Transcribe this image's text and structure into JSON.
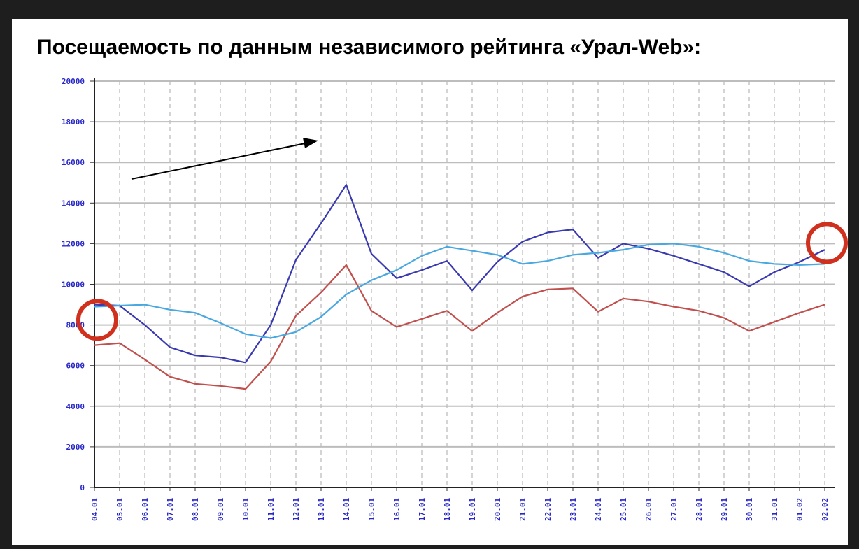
{
  "slide": {
    "title": "Посещаемость по данным независимого рейтинга «Урал-Web»:"
  },
  "chart_data": {
    "type": "line",
    "title": "Посещаемость по данным независимого рейтинга «Урал-Web»:",
    "xlabel": "",
    "ylabel": "",
    "ylim": [
      0,
      20000
    ],
    "yticks": [
      0,
      2000,
      4000,
      6000,
      8000,
      10000,
      12000,
      14000,
      16000,
      18000,
      20000
    ],
    "grid": true,
    "x": [
      "04.01",
      "05.01",
      "06.01",
      "07.01",
      "08.01",
      "09.01",
      "10.01",
      "11.01",
      "12.01",
      "13.01",
      "14.01",
      "15.01",
      "16.01",
      "17.01",
      "18.01",
      "19.01",
      "20.01",
      "21.01",
      "22.01",
      "23.01",
      "24.01",
      "25.01",
      "26.01",
      "27.01",
      "28.01",
      "29.01",
      "30.01",
      "31.01",
      "01.02",
      "02.02"
    ],
    "series": [
      {
        "color": "#3a3ab0",
        "values": [
          9000,
          8950,
          8000,
          6900,
          6500,
          6400,
          6150,
          8000,
          11200,
          13000,
          14900,
          11500,
          10300,
          10700,
          11150,
          9700,
          11100,
          12100,
          12550,
          12700,
          11300,
          12000,
          11750,
          11400,
          11000,
          10600,
          9900,
          10600,
          11100,
          11700
        ]
      },
      {
        "color": "#c0504d",
        "values": [
          7000,
          7100,
          6300,
          5450,
          5100,
          5000,
          4850,
          6200,
          8450,
          9600,
          10950,
          8700,
          7900,
          8300,
          8700,
          7700,
          8600,
          9400,
          9750,
          9800,
          8650,
          9300,
          9150,
          8900,
          8700,
          8350,
          7700,
          8150,
          8600,
          9000
        ]
      },
      {
        "color": "#4aa8e0",
        "values": [
          8900,
          8950,
          9000,
          8750,
          8600,
          8100,
          7550,
          7350,
          7650,
          8400,
          9500,
          10200,
          10700,
          11400,
          11850,
          11650,
          11450,
          11000,
          11150,
          11450,
          11550,
          11700,
          11950,
          12000,
          11850,
          11550,
          11150,
          11000,
          10950,
          11000
        ]
      }
    ],
    "annotations": {
      "arrow_color": "#000000",
      "circle_color": "#d0301e"
    }
  }
}
